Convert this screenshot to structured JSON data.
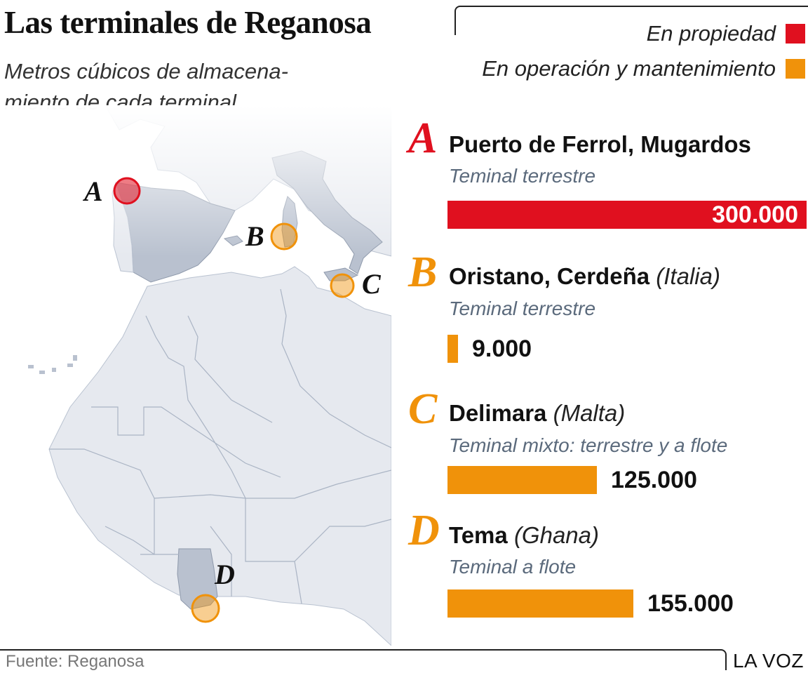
{
  "title": "Las terminales de Reganosa",
  "subtitle": "Metros cúbicos de almacena-miento de cada terminal",
  "legend": [
    {
      "label": "En propiedad",
      "color": "#e0101f"
    },
    {
      "label": "En operación y mantenimiento",
      "color": "#f0920a"
    }
  ],
  "map": {
    "markers": [
      {
        "letter": "A",
        "type": "owned"
      },
      {
        "letter": "B",
        "type": "operated"
      },
      {
        "letter": "C",
        "type": "operated"
      },
      {
        "letter": "D",
        "type": "operated"
      }
    ]
  },
  "chart_data": {
    "type": "bar",
    "orientation": "horizontal",
    "categories": [
      "Puerto de Ferrol, Mugardos",
      "Oristano, Cerdeña",
      "Delimara",
      "Tema"
    ],
    "values": [
      300000,
      9000,
      125000,
      155000
    ],
    "value_labels": [
      "300.000",
      "9.000",
      "125.000",
      "155.000"
    ],
    "xlim": [
      0,
      300000
    ],
    "rows": [
      {
        "letter": "A",
        "name": "Puerto de Ferrol, Mugardos",
        "country": "",
        "type": "Teminal terrestre",
        "value": 300000,
        "value_label": "300.000",
        "status": "En propiedad",
        "color": "#e0101f"
      },
      {
        "letter": "B",
        "name": "Oristano, Cerdeña",
        "country": "(Italia)",
        "type": "Teminal terrestre",
        "value": 9000,
        "value_label": "9.000",
        "status": "En operación y mantenimiento",
        "color": "#f0920a"
      },
      {
        "letter": "C",
        "name": "Delimara",
        "country": "(Malta)",
        "type": "Teminal mixto: terrestre y a flote",
        "value": 125000,
        "value_label": "125.000",
        "status": "En operación y mantenimiento",
        "color": "#f0920a"
      },
      {
        "letter": "D",
        "name": "Tema",
        "country": "(Ghana)",
        "type": "Teminal a flote",
        "value": 155000,
        "value_label": "155.000",
        "status": "En operación y mantenimiento",
        "color": "#f0920a"
      }
    ]
  },
  "footer": {
    "source": "Fuente: Reganosa",
    "brand": "LA VOZ"
  }
}
